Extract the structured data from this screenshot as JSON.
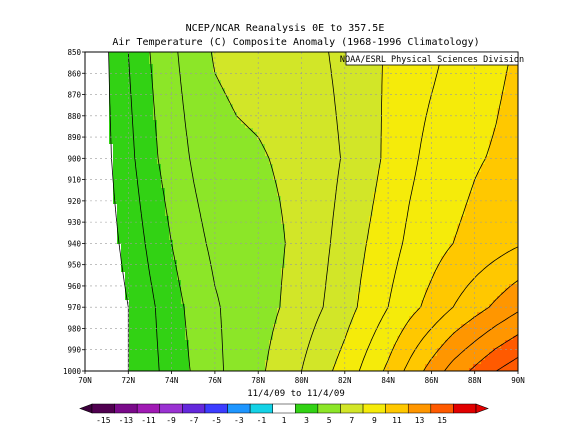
{
  "chart_data": {
    "type": "heatmap",
    "title": "NCEP/NCAR Reanalysis 0E to 357.5E",
    "subtitle": "Air Temperature (C) Composite Anomaly (1968-1996 Climatology)",
    "credit": "NOAA/ESRL Physical Sciences Division",
    "xlabel": "11/4/09  to 11/4/09",
    "x_ticks": [
      "70N",
      "72N",
      "74N",
      "76N",
      "78N",
      "80N",
      "82N",
      "84N",
      "86N",
      "88N",
      "90N"
    ],
    "y_ticks": [
      "850",
      "860",
      "870",
      "880",
      "890",
      "900",
      "910",
      "920",
      "930",
      "940",
      "950",
      "960",
      "970",
      "980",
      "990",
      "1000"
    ],
    "xlim": [
      70,
      90
    ],
    "ylim": [
      1000,
      850
    ],
    "grid": true,
    "colorbar": {
      "labels": [
        "-15",
        "-13",
        "-11",
        "-9",
        "-7",
        "-5",
        "-3",
        "-1",
        "1",
        "3",
        "5",
        "7",
        "9",
        "11",
        "13",
        "15"
      ],
      "bounds": [
        -15,
        -13,
        -11,
        -9,
        -7,
        -5,
        -3,
        -1,
        1,
        3,
        5,
        7,
        9,
        11,
        13,
        15
      ],
      "colors": [
        "#500050",
        "#7a0a8a",
        "#a01ab4",
        "#9a32d2",
        "#6428dc",
        "#3c3cff",
        "#1e96ff",
        "#14d2e6",
        "#ffffff",
        "#32d214",
        "#8ce628",
        "#d2e628",
        "#f5eb0a",
        "#ffc800",
        "#ff9600",
        "#ff5a00",
        "#e10000"
      ],
      "arrow_low": "#3c003c",
      "arrow_high": "#e10000"
    },
    "field": {
      "x": [
        70,
        71,
        72,
        73,
        74,
        75,
        76,
        77,
        78,
        79,
        80,
        81,
        82,
        83,
        84,
        85,
        86,
        87,
        88,
        89,
        90
      ],
      "levels": [
        850,
        900,
        940,
        970,
        1000
      ],
      "rows": [
        [
          0.2,
          0.9,
          2.0,
          3.0,
          3.8,
          4.5,
          5.1,
          5.3,
          5.4,
          5.5,
          5.6,
          5.9,
          6.3,
          6.7,
          7.1,
          7.5,
          7.8,
          8.2,
          8.5,
          8.8,
          9.1
        ],
        [
          0.2,
          0.8,
          1.7,
          2.7,
          3.5,
          4.1,
          4.6,
          4.8,
          4.9,
          5.1,
          5.3,
          5.6,
          6.1,
          6.6,
          7.2,
          7.8,
          8.3,
          8.6,
          8.9,
          9.1,
          9.4
        ],
        [
          0.1,
          0.6,
          1.3,
          2.2,
          3.0,
          3.7,
          4.2,
          4.4,
          4.6,
          4.9,
          5.3,
          5.8,
          6.4,
          7.0,
          7.6,
          8.2,
          8.6,
          9.0,
          9.3,
          9.6,
          9.9
        ],
        [
          0.0,
          0.4,
          1.0,
          1.8,
          2.6,
          3.3,
          3.9,
          4.3,
          4.6,
          5.0,
          5.5,
          6.0,
          6.6,
          7.3,
          8.0,
          8.7,
          9.3,
          10.0,
          10.6,
          11.2,
          11.8
        ],
        [
          0.1,
          0.5,
          1.0,
          1.7,
          2.4,
          3.1,
          3.8,
          4.3,
          4.8,
          5.4,
          6.0,
          6.7,
          7.4,
          8.3,
          9.2,
          10.3,
          11.4,
          12.4,
          13.2,
          14.0,
          14.6
        ]
      ]
    }
  }
}
